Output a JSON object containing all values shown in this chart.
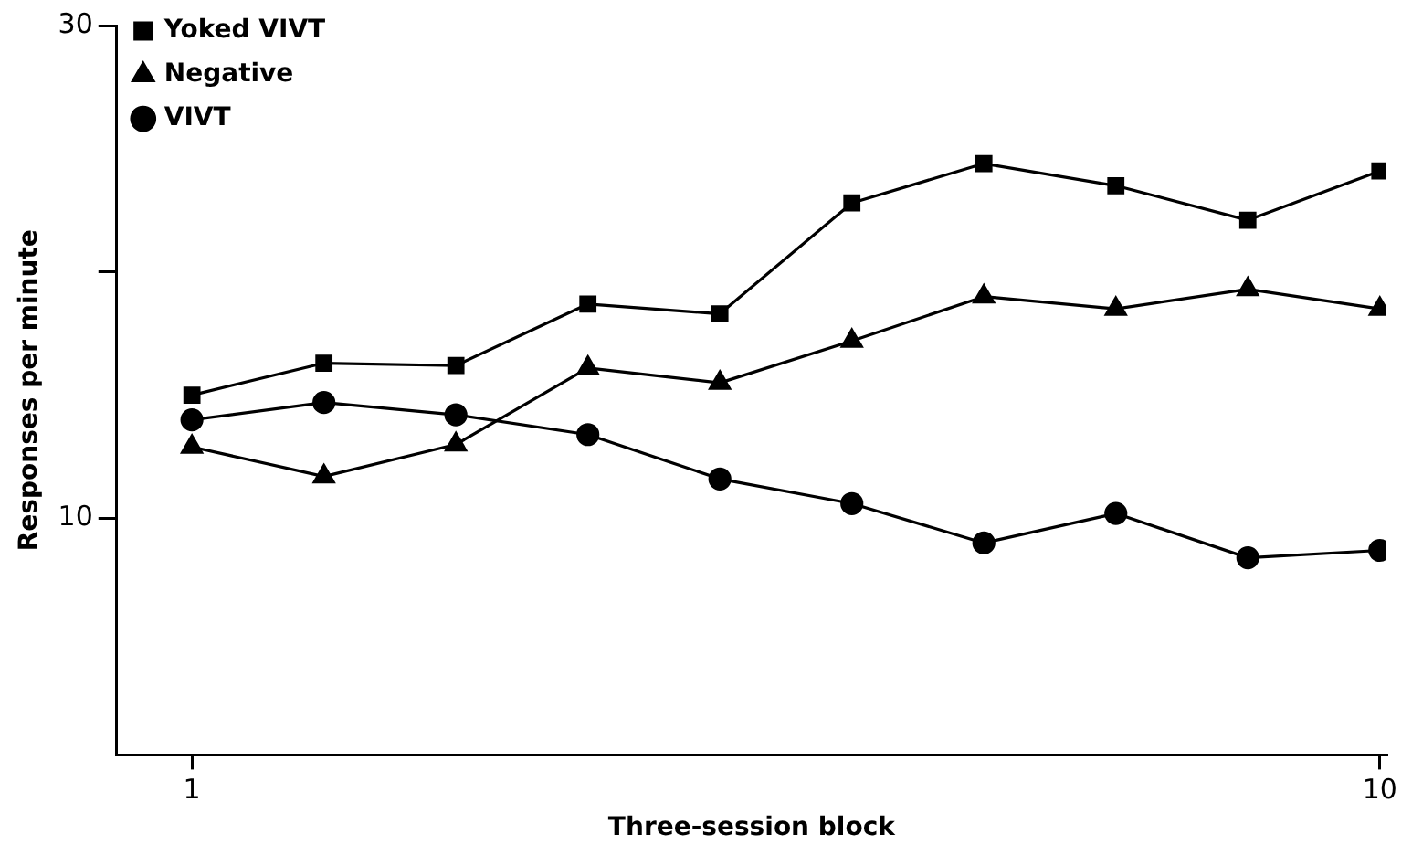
{
  "chart_data": {
    "type": "line",
    "xlabel": "Three-session block",
    "ylabel": "Responses per minute",
    "x": [
      1,
      2,
      3,
      4,
      5,
      6,
      7,
      8,
      9,
      10
    ],
    "series": [
      {
        "name": "Yoked VIVT",
        "color": "#000000",
        "marker": "square",
        "values": [
          15.0,
          16.3,
          16.2,
          18.7,
          18.3,
          22.8,
          24.4,
          23.5,
          22.1,
          24.1
        ]
      },
      {
        "name": "Negative",
        "color": "#000000",
        "marker": "triangle",
        "values": [
          12.9,
          11.7,
          13.0,
          16.1,
          15.5,
          17.2,
          19.0,
          18.5,
          19.3,
          18.5
        ]
      },
      {
        "name": "VIVT",
        "color": "#000000",
        "marker": "circle",
        "values": [
          14.0,
          14.7,
          14.2,
          13.4,
          11.6,
          10.6,
          9.0,
          10.2,
          8.4,
          8.7
        ]
      }
    ],
    "xlim": [
      0.43,
      10.05
    ],
    "xticks": [
      1,
      10
    ],
    "ylim": [
      0.4,
      30
    ],
    "yticks": [
      {
        "value": 10,
        "label": "10"
      },
      {
        "value": 20,
        "label": null
      },
      {
        "value": 30,
        "label": "30"
      }
    ],
    "grid": false,
    "legend": "top left",
    "line_style": "solid"
  }
}
